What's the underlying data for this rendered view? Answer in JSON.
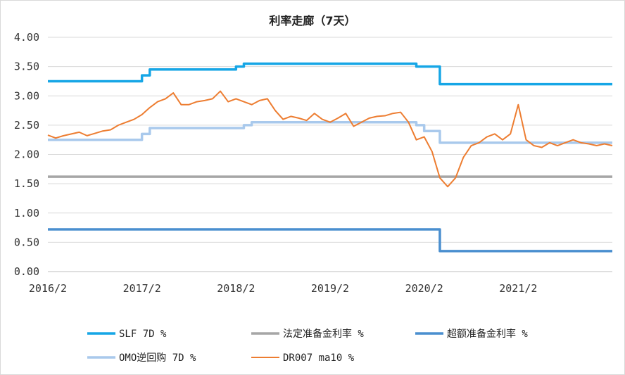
{
  "chart_data": {
    "type": "line",
    "title": "利率走廊（7天）",
    "xlabel": "",
    "ylabel": "",
    "ylim": [
      0,
      4
    ],
    "x_tick_labels": [
      "2016/2",
      "2017/2",
      "2018/2",
      "2019/2",
      "2020/2",
      "2021/2"
    ],
    "y_tick_labels": [
      "0.00",
      "0.50",
      "1.00",
      "1.50",
      "2.00",
      "2.50",
      "3.00",
      "3.50",
      "4.00"
    ],
    "y_ticks": [
      0,
      0.5,
      1,
      1.5,
      2,
      2.5,
      3,
      3.5,
      4
    ],
    "x_domain": [
      "2016-02",
      "2022-02"
    ],
    "grid": true,
    "legend_position": "bottom",
    "series": [
      {
        "name": "SLF 7D %",
        "color": "#16a6e6",
        "kind": "step",
        "points": [
          [
            "2016-02",
            3.25
          ],
          [
            "2017-02",
            3.35
          ],
          [
            "2017-03",
            3.45
          ],
          [
            "2018-01",
            3.45
          ],
          [
            "2018-02",
            3.5
          ],
          [
            "2018-03",
            3.55
          ],
          [
            "2019-12",
            3.55
          ],
          [
            "2020-01",
            3.5
          ],
          [
            "2020-03",
            3.5
          ],
          [
            "2020-04",
            3.2
          ],
          [
            "2022-02",
            3.2
          ]
        ]
      },
      {
        "name": "法定准备金利率 %",
        "color": "#a6a6a6",
        "kind": "step",
        "points": [
          [
            "2016-02",
            1.62
          ],
          [
            "2022-02",
            1.62
          ]
        ]
      },
      {
        "name": "超额准备金利率 %",
        "color": "#4a8fcf",
        "kind": "step",
        "points": [
          [
            "2016-02",
            0.72
          ],
          [
            "2020-04",
            0.72
          ],
          [
            "2020-04",
            0.35
          ],
          [
            "2022-02",
            0.35
          ]
        ]
      },
      {
        "name": "OMO逆回购 7D %",
        "color": "#a9c9ec",
        "kind": "step",
        "points": [
          [
            "2016-02",
            2.25
          ],
          [
            "2017-02",
            2.35
          ],
          [
            "2017-03",
            2.45
          ],
          [
            "2018-03",
            2.5
          ],
          [
            "2018-04",
            2.55
          ],
          [
            "2019-12",
            2.55
          ],
          [
            "2020-01",
            2.5
          ],
          [
            "2020-02",
            2.4
          ],
          [
            "2020-04",
            2.2
          ],
          [
            "2022-02",
            2.2
          ]
        ]
      },
      {
        "name": "DR007 ma10 %",
        "color": "#ed7d31",
        "kind": "line",
        "points": [
          [
            "2016-02",
            2.33
          ],
          [
            "2016-03",
            2.28
          ],
          [
            "2016-04",
            2.32
          ],
          [
            "2016-05",
            2.35
          ],
          [
            "2016-06",
            2.38
          ],
          [
            "2016-07",
            2.32
          ],
          [
            "2016-08",
            2.36
          ],
          [
            "2016-09",
            2.4
          ],
          [
            "2016-10",
            2.42
          ],
          [
            "2016-11",
            2.5
          ],
          [
            "2016-12",
            2.55
          ],
          [
            "2017-01",
            2.6
          ],
          [
            "2017-02",
            2.68
          ],
          [
            "2017-03",
            2.8
          ],
          [
            "2017-04",
            2.9
          ],
          [
            "2017-05",
            2.95
          ],
          [
            "2017-06",
            3.05
          ],
          [
            "2017-07",
            2.85
          ],
          [
            "2017-08",
            2.85
          ],
          [
            "2017-09",
            2.9
          ],
          [
            "2017-10",
            2.92
          ],
          [
            "2017-11",
            2.95
          ],
          [
            "2017-12",
            3.08
          ],
          [
            "2018-01",
            2.9
          ],
          [
            "2018-02",
            2.95
          ],
          [
            "2018-03",
            2.9
          ],
          [
            "2018-04",
            2.85
          ],
          [
            "2018-05",
            2.92
          ],
          [
            "2018-06",
            2.95
          ],
          [
            "2018-07",
            2.75
          ],
          [
            "2018-08",
            2.6
          ],
          [
            "2018-09",
            2.65
          ],
          [
            "2018-10",
            2.62
          ],
          [
            "2018-11",
            2.58
          ],
          [
            "2018-12",
            2.7
          ],
          [
            "2019-01",
            2.6
          ],
          [
            "2019-02",
            2.55
          ],
          [
            "2019-03",
            2.62
          ],
          [
            "2019-04",
            2.7
          ],
          [
            "2019-05",
            2.48
          ],
          [
            "2019-06",
            2.55
          ],
          [
            "2019-07",
            2.62
          ],
          [
            "2019-08",
            2.65
          ],
          [
            "2019-09",
            2.66
          ],
          [
            "2019-10",
            2.7
          ],
          [
            "2019-11",
            2.72
          ],
          [
            "2019-12",
            2.55
          ],
          [
            "2020-01",
            2.25
          ],
          [
            "2020-02",
            2.3
          ],
          [
            "2020-03",
            2.05
          ],
          [
            "2020-04",
            1.6
          ],
          [
            "2020-05",
            1.45
          ],
          [
            "2020-06",
            1.6
          ],
          [
            "2020-07",
            1.95
          ],
          [
            "2020-08",
            2.15
          ],
          [
            "2020-09",
            2.2
          ],
          [
            "2020-10",
            2.3
          ],
          [
            "2020-11",
            2.35
          ],
          [
            "2020-12",
            2.25
          ],
          [
            "2021-01",
            2.35
          ],
          [
            "2021-02",
            2.85
          ],
          [
            "2021-03",
            2.25
          ],
          [
            "2021-04",
            2.15
          ],
          [
            "2021-05",
            2.12
          ],
          [
            "2021-06",
            2.2
          ],
          [
            "2021-07",
            2.15
          ],
          [
            "2021-08",
            2.2
          ],
          [
            "2021-09",
            2.25
          ],
          [
            "2021-10",
            2.2
          ],
          [
            "2021-11",
            2.18
          ],
          [
            "2021-12",
            2.15
          ],
          [
            "2022-01",
            2.18
          ],
          [
            "2022-02",
            2.15
          ]
        ]
      }
    ]
  }
}
